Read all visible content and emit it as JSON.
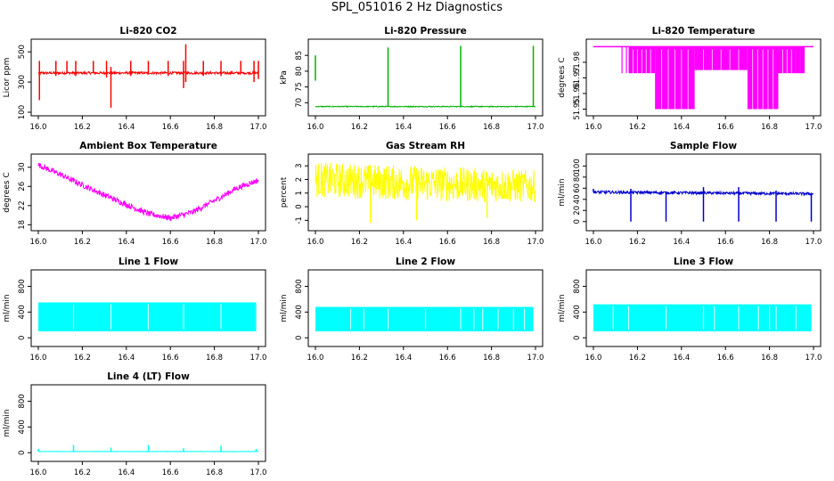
{
  "title": "SPL_051016  2 Hz Diagnostics",
  "chart_data": [
    {
      "type": "line",
      "title": "Li-820 CO2",
      "ylabel": "Licor ppm",
      "color": "#ff0000",
      "xlim": [
        16.0,
        17.0
      ],
      "ylim": [
        100,
        560
      ],
      "xticks": [
        "16.0",
        "16.2",
        "16.4",
        "16.6",
        "16.8",
        "17.0"
      ],
      "yticks": [
        100,
        300,
        500
      ],
      "series": [
        {
          "kind": "noise",
          "x": [
            16.0,
            17.0
          ],
          "base": [
            360,
            360
          ],
          "amp": [
            8,
            8
          ],
          "spikes": [
            {
              "x": 16.005,
              "lo": 180,
              "hi": 440
            },
            {
              "x": 16.08,
              "lo": 340,
              "hi": 440
            },
            {
              "x": 16.13,
              "lo": 360,
              "hi": 440
            },
            {
              "x": 16.17,
              "lo": 340,
              "hi": 440
            },
            {
              "x": 16.25,
              "lo": 360,
              "hi": 440
            },
            {
              "x": 16.31,
              "lo": 330,
              "hi": 440
            },
            {
              "x": 16.33,
              "lo": 130,
              "hi": 400
            },
            {
              "x": 16.42,
              "lo": 340,
              "hi": 440
            },
            {
              "x": 16.5,
              "lo": 350,
              "hi": 440
            },
            {
              "x": 16.59,
              "lo": 340,
              "hi": 440
            },
            {
              "x": 16.66,
              "lo": 260,
              "hi": 440
            },
            {
              "x": 16.67,
              "lo": 300,
              "hi": 550
            },
            {
              "x": 16.75,
              "lo": 340,
              "hi": 440
            },
            {
              "x": 16.83,
              "lo": 340,
              "hi": 440
            },
            {
              "x": 16.92,
              "lo": 360,
              "hi": 440
            },
            {
              "x": 16.98,
              "lo": 300,
              "hi": 440
            },
            {
              "x": 17.0,
              "lo": 320,
              "hi": 440
            }
          ]
        }
      ]
    },
    {
      "type": "line",
      "title": "Li-820 Pressure",
      "ylabel": "kPa",
      "color": "#00b400",
      "xlim": [
        16.0,
        17.0
      ],
      "ylim": [
        67,
        89
      ],
      "xticks": [
        "16.0",
        "16.2",
        "16.4",
        "16.6",
        "16.8",
        "17.0"
      ],
      "yticks": [
        70,
        75,
        80,
        85
      ],
      "series": [
        {
          "kind": "noise",
          "x": [
            16.0,
            17.0
          ],
          "base": [
            68.8,
            68.8
          ],
          "amp": [
            0.15,
            0.15
          ],
          "spikes": [
            {
              "x": 16.0,
              "lo": 77,
              "hi": 85
            },
            {
              "x": 16.33,
              "lo": 68.8,
              "hi": 87.5
            },
            {
              "x": 16.66,
              "lo": 68.8,
              "hi": 88
            },
            {
              "x": 16.99,
              "lo": 68.8,
              "hi": 88
            }
          ]
        }
      ]
    },
    {
      "type": "line",
      "title": "Li-820 Temperature",
      "ylabel": "degrees C",
      "color": "#ff00ff",
      "xlim": [
        16.0,
        17.0
      ],
      "ylim": [
        51.948,
        51.9925
      ],
      "xticks": [
        "16.0",
        "16.2",
        "16.4",
        "16.6",
        "16.8",
        "17.0"
      ],
      "yticks": [
        51.95,
        51.96,
        51.97,
        51.98
      ],
      "series": [
        {
          "kind": "bands",
          "top": 51.99,
          "segments": [
            {
              "x0": 16.16,
              "x1": 16.28,
              "lo": 51.973
            },
            {
              "x0": 16.28,
              "x1": 16.46,
              "lo": 51.95
            },
            {
              "x0": 16.46,
              "x1": 16.7,
              "lo": 51.975
            },
            {
              "x0": 16.7,
              "x1": 16.84,
              "lo": 51.95
            },
            {
              "x0": 16.84,
              "x1": 16.96,
              "lo": 51.973
            }
          ]
        }
      ]
    },
    {
      "type": "line",
      "title": "Ambient Box Temperature",
      "ylabel": "degrees C",
      "color": "#ff00ff",
      "xlim": [
        16.0,
        17.0
      ],
      "ylim": [
        17.5,
        32
      ],
      "xticks": [
        "16.0",
        "16.2",
        "16.4",
        "16.6",
        "16.8",
        "17.0"
      ],
      "yticks": [
        18,
        22,
        26,
        30
      ],
      "series": [
        {
          "kind": "noise",
          "x": [
            16.0,
            16.1,
            16.2,
            16.3,
            16.4,
            16.5,
            16.6,
            16.7,
            16.8,
            16.9,
            17.0
          ],
          "base": [
            30.5,
            28.5,
            26.3,
            24.2,
            22.2,
            20.3,
            19.4,
            20.6,
            23.0,
            25.6,
            27.3
          ],
          "amp": [
            0.6,
            0.6,
            0.6,
            0.6,
            0.6,
            0.6,
            0.6,
            0.6,
            0.6,
            0.6,
            0.6
          ],
          "spikes": []
        }
      ]
    },
    {
      "type": "line",
      "title": "Gas Stream RH",
      "ylabel": "percent",
      "color": "#ffff00",
      "xlim": [
        16.0,
        17.0
      ],
      "ylim": [
        -1.5,
        3.6
      ],
      "xticks": [
        "16.0",
        "16.2",
        "16.4",
        "16.6",
        "16.8",
        "17.0"
      ],
      "yticks": [
        -1,
        0,
        1,
        2,
        3
      ],
      "series": [
        {
          "kind": "noise",
          "x": [
            16.0,
            16.5,
            17.0
          ],
          "base": [
            2.0,
            1.7,
            1.5
          ],
          "amp": [
            1.3,
            1.3,
            1.2
          ],
          "spikes": [
            {
              "x": 16.25,
              "lo": -1.2,
              "hi": 3.0
            },
            {
              "x": 16.46,
              "lo": -1.0,
              "hi": 2.8
            },
            {
              "x": 16.78,
              "lo": -0.8,
              "hi": 2.5
            }
          ]
        }
      ]
    },
    {
      "type": "line",
      "title": "Sample Flow",
      "ylabel": "ml/min",
      "color": "#0000cc",
      "xlim": [
        16.0,
        17.0
      ],
      "ylim": [
        -10,
        115
      ],
      "xticks": [
        "16.0",
        "16.2",
        "16.4",
        "16.6",
        "16.8",
        "17.0"
      ],
      "yticks": [
        0,
        20,
        40,
        60,
        80,
        100
      ],
      "series": [
        {
          "kind": "noise",
          "x": [
            16.0,
            17.0
          ],
          "base": [
            53,
            50
          ],
          "amp": [
            2.5,
            2.5
          ],
          "spikes": [
            {
              "x": 16.0,
              "lo": 53,
              "hi": 59
            },
            {
              "x": 16.17,
              "lo": 0,
              "hi": 59
            },
            {
              "x": 16.33,
              "lo": 0,
              "hi": 53
            },
            {
              "x": 16.5,
              "lo": 0,
              "hi": 62
            },
            {
              "x": 16.66,
              "lo": 0,
              "hi": 62
            },
            {
              "x": 16.83,
              "lo": 0,
              "hi": 56
            },
            {
              "x": 16.99,
              "lo": 0,
              "hi": 52
            }
          ]
        }
      ]
    },
    {
      "type": "line",
      "title": "Line 1 Flow",
      "ylabel": "ml/min",
      "color": "#00ffff",
      "xlim": [
        16.0,
        17.0
      ],
      "ylim": [
        -80,
        1000
      ],
      "xticks": [
        "16.0",
        "16.2",
        "16.4",
        "16.6",
        "16.8",
        "17.0"
      ],
      "yticks": [
        0,
        400,
        800
      ],
      "series": [
        {
          "kind": "block",
          "x0": 16.0,
          "x1": 16.99,
          "lo": 100,
          "hi": 550,
          "gaps": [
            16.16,
            16.33,
            16.5,
            16.66,
            16.83
          ]
        }
      ]
    },
    {
      "type": "line",
      "title": "Line 2 Flow",
      "ylabel": "ml/min",
      "color": "#00ffff",
      "xlim": [
        16.0,
        17.0
      ],
      "ylim": [
        -80,
        1000
      ],
      "xticks": [
        "16.0",
        "16.2",
        "16.4",
        "16.6",
        "16.8",
        "17.0"
      ],
      "yticks": [
        0,
        400,
        800
      ],
      "series": [
        {
          "kind": "block",
          "x0": 16.0,
          "x1": 16.99,
          "lo": 100,
          "hi": 480,
          "gaps": [
            16.16,
            16.22,
            16.33,
            16.5,
            16.66,
            16.72,
            16.76,
            16.83,
            16.9,
            16.95
          ]
        }
      ]
    },
    {
      "type": "line",
      "title": "Line 3 Flow",
      "ylabel": "ml/min",
      "color": "#00ffff",
      "xlim": [
        16.0,
        17.0
      ],
      "ylim": [
        -80,
        1000
      ],
      "xticks": [
        "16.0",
        "16.2",
        "16.4",
        "16.6",
        "16.8",
        "17.0"
      ],
      "yticks": [
        0,
        400,
        800
      ],
      "series": [
        {
          "kind": "block",
          "x0": 16.0,
          "x1": 16.99,
          "lo": 100,
          "hi": 520,
          "gaps": [
            16.09,
            16.16,
            16.33,
            16.5,
            16.55,
            16.66,
            16.75,
            16.8,
            16.83,
            16.92
          ]
        }
      ]
    },
    {
      "type": "line",
      "title": "Line 4 (LT) Flow",
      "ylabel": "ml/min",
      "color": "#00ffff",
      "xlim": [
        16.0,
        17.0
      ],
      "ylim": [
        -80,
        1000
      ],
      "xticks": [
        "16.0",
        "16.2",
        "16.4",
        "16.6",
        "16.8",
        "17.0"
      ],
      "yticks": [
        0,
        400,
        800
      ],
      "series": [
        {
          "kind": "noise",
          "x": [
            16.0,
            17.0
          ],
          "base": [
            18,
            18
          ],
          "amp": [
            3,
            3
          ],
          "spikes": [
            {
              "x": 16.0,
              "lo": 18,
              "hi": 60
            },
            {
              "x": 16.16,
              "lo": 18,
              "hi": 120
            },
            {
              "x": 16.33,
              "lo": 18,
              "hi": 80
            },
            {
              "x": 16.5,
              "lo": 18,
              "hi": 120
            },
            {
              "x": 16.66,
              "lo": 18,
              "hi": 70
            },
            {
              "x": 16.83,
              "lo": 18,
              "hi": 110
            },
            {
              "x": 16.99,
              "lo": 18,
              "hi": 60
            }
          ]
        }
      ]
    }
  ]
}
